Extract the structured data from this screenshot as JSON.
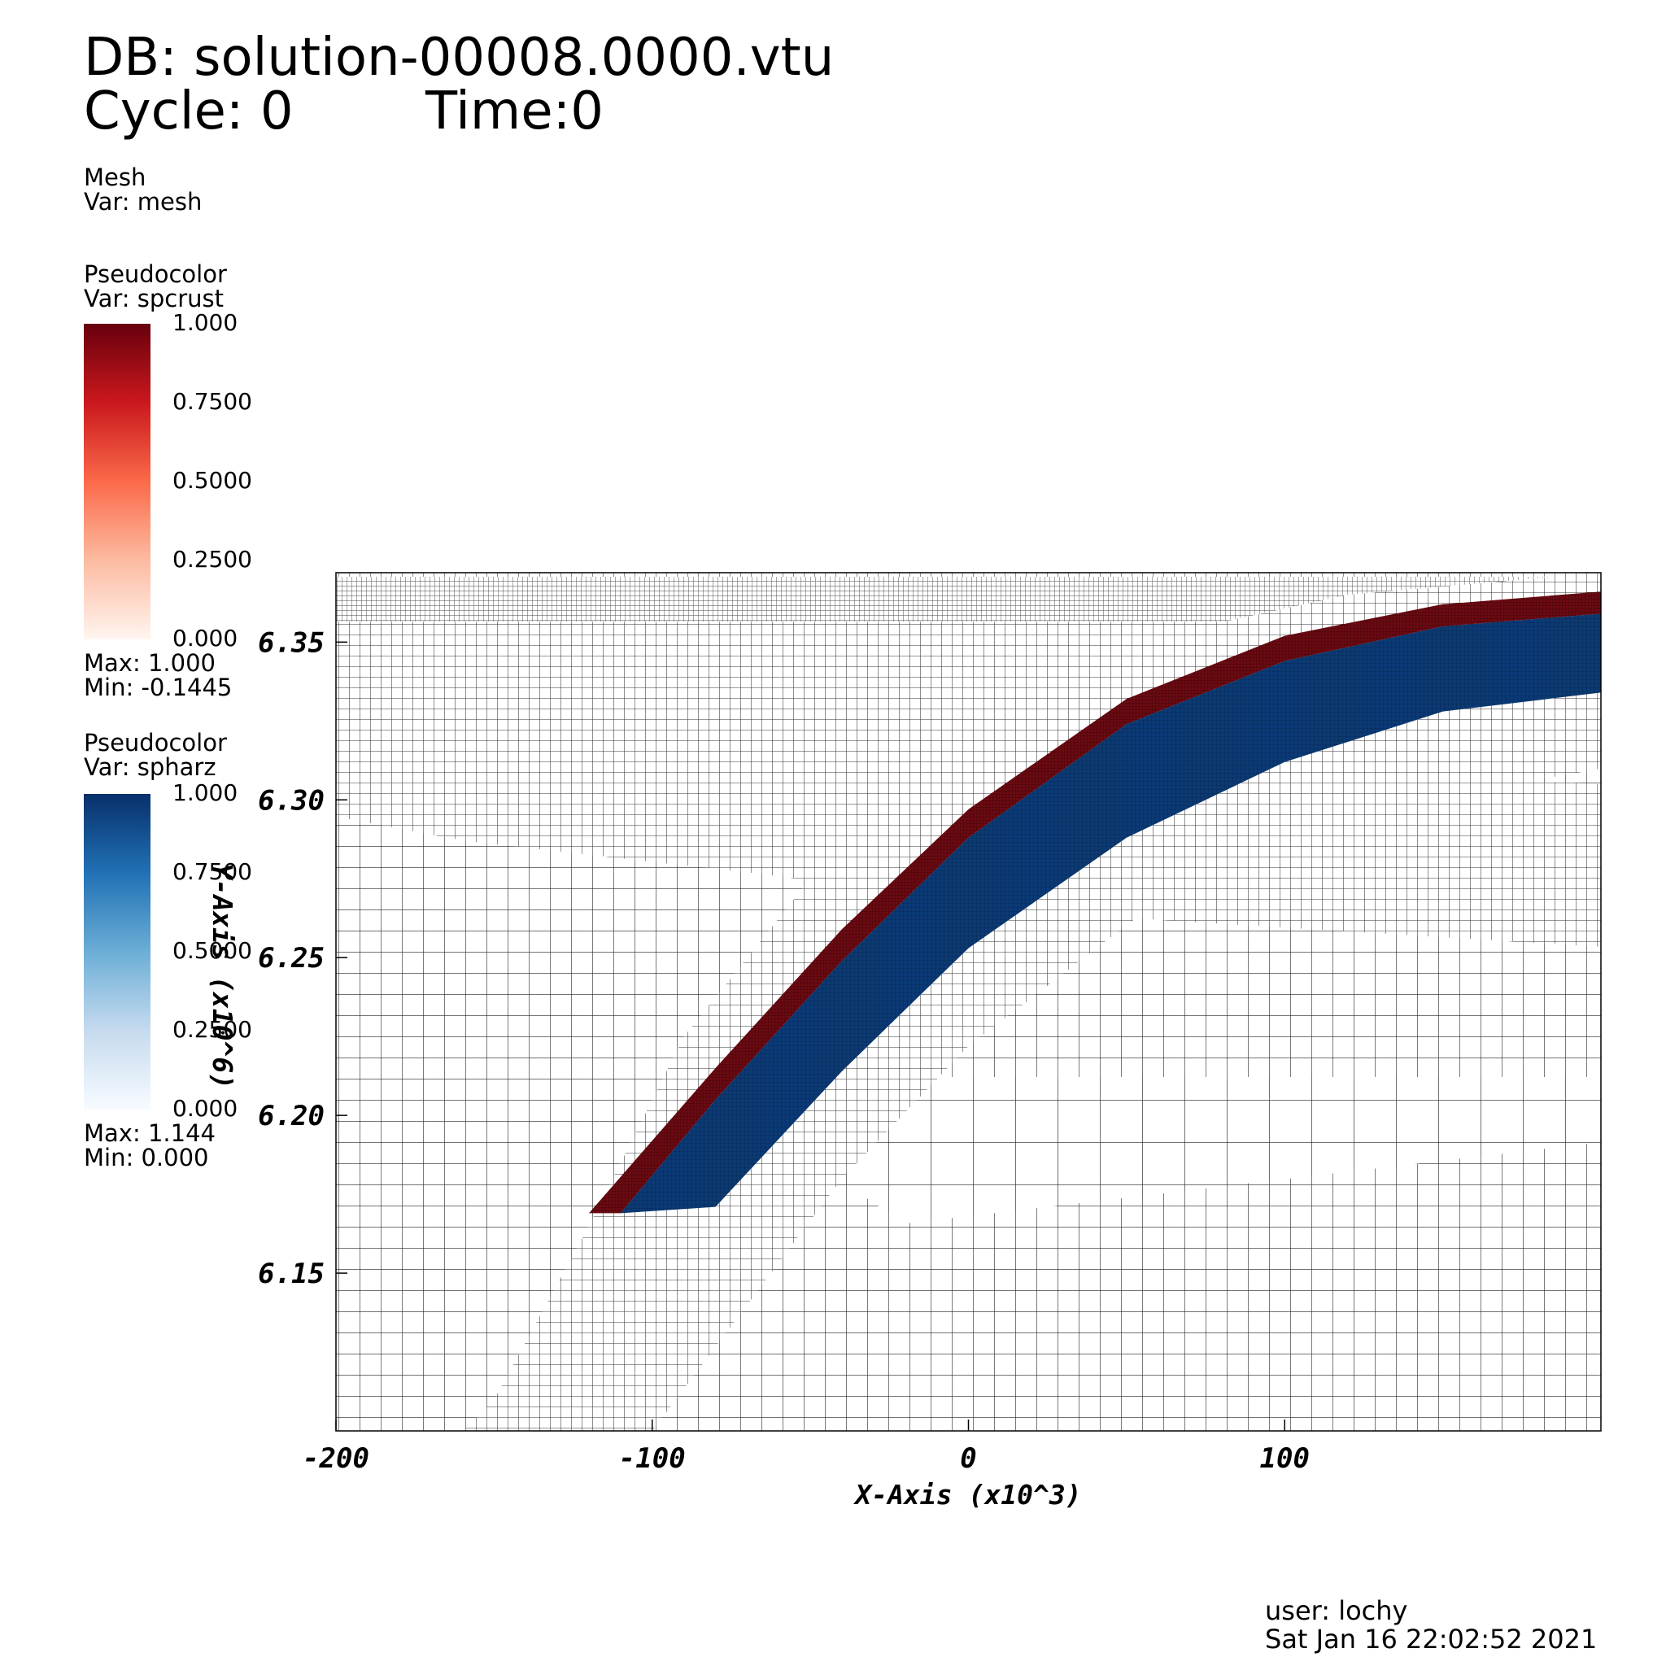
{
  "header": {
    "db_line": "DB: solution-00008.0000.vtu",
    "cycle_label": "Cycle: 0",
    "time_label": "Time:0"
  },
  "mesh_legend": {
    "plot": "Mesh",
    "var": "Var: mesh"
  },
  "spcrust_legend": {
    "plot": "Pseudocolor",
    "var": "Var: spcrust",
    "ticks": [
      "1.000",
      "0.7500",
      "0.5000",
      "0.2500",
      "0.000"
    ],
    "max": "Max:  1.000",
    "min": "Min: -0.1445",
    "colors": [
      "#fff5f0",
      "#fcbba1",
      "#fb6a4a",
      "#cb181d",
      "#67000d"
    ]
  },
  "spharz_legend": {
    "plot": "Pseudocolor",
    "var": "Var: spharz",
    "ticks": [
      "1.000",
      "0.7500",
      "0.5000",
      "0.2500",
      "0.000"
    ],
    "max": "Max:  1.144",
    "min": "Min:  0.000",
    "colors": [
      "#f7fbff",
      "#c6dbef",
      "#6baed6",
      "#2171b5",
      "#08306b"
    ]
  },
  "footer": {
    "user": "user: lochy",
    "timestamp": "Sat Jan 16 22:02:52 2021"
  },
  "chart_data": {
    "type": "heatmap",
    "xlabel": "X-Axis (x10^3)",
    "ylabel": "Y-Axis (x10^6)",
    "xlim": [
      -200,
      200
    ],
    "ylim": [
      6.1,
      6.372
    ],
    "x_ticks": [
      -200,
      -100,
      0,
      100
    ],
    "x_tick_labels": [
      "-200",
      "-100",
      "0",
      "100"
    ],
    "y_ticks": [
      6.15,
      6.2,
      6.25,
      6.3,
      6.35
    ],
    "y_tick_labels": [
      "6.15",
      "6.20",
      "6.25",
      "6.30",
      "6.35"
    ],
    "fields": [
      {
        "var": "spcrust",
        "color": "#67000d",
        "description_value_max": 1.0
      },
      {
        "var": "spharz",
        "color": "#08306b",
        "description_value_max": 1.144
      }
    ],
    "crust_band_top": [
      [
        -120,
        6.169
      ],
      [
        -80,
        6.215
      ],
      [
        -40,
        6.259
      ],
      [
        0,
        6.297
      ],
      [
        50,
        6.332
      ],
      [
        100,
        6.352
      ],
      [
        150,
        6.362
      ],
      [
        200,
        6.366
      ]
    ],
    "crust_band_bottom": [
      [
        -110,
        6.169
      ],
      [
        -80,
        6.205
      ],
      [
        -40,
        6.249
      ],
      [
        0,
        6.288
      ],
      [
        50,
        6.324
      ],
      [
        100,
        6.344
      ],
      [
        150,
        6.355
      ],
      [
        200,
        6.359
      ]
    ],
    "harz_band_bottom": [
      [
        -80,
        6.171
      ],
      [
        -40,
        6.214
      ],
      [
        0,
        6.253
      ],
      [
        50,
        6.288
      ],
      [
        100,
        6.312
      ],
      [
        150,
        6.328
      ],
      [
        200,
        6.334
      ]
    ]
  }
}
